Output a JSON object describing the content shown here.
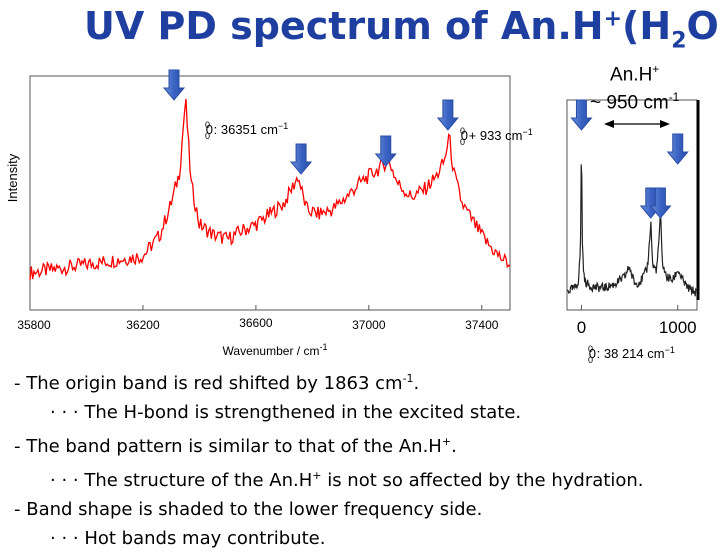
{
  "slide": {
    "title_main": "UV PD spectrum of An.H",
    "title_sup": "+",
    "title_rest": "(H",
    "title_sub": "2",
    "title_end": "O)"
  },
  "chart_data": [
    {
      "type": "line",
      "xlabel": "Wavenumber / cm-1",
      "ylabel": "Intensity",
      "xlim": [
        35800,
        37500
      ],
      "ylim": [
        0,
        1
      ],
      "x_ticks": [
        "35800",
        "36200",
        "36600",
        "37000",
        "37400"
      ],
      "annotations": [
        {
          "text": "0 0 0 : 36351 cm-1",
          "x": 36351
        },
        {
          "text": "0 0 0 + 933 cm-1",
          "x": 37284
        }
      ],
      "arrows_x": [
        36310,
        36760,
        37060,
        37280
      ],
      "series": [
        {
          "color": "#ff0000",
          "x": [
            35800,
            35900,
            36000,
            36100,
            36200,
            36260,
            36300,
            36330,
            36351,
            36370,
            36400,
            36450,
            36500,
            36550,
            36600,
            36650,
            36700,
            36750,
            36760,
            36780,
            36820,
            36870,
            36920,
            36970,
            37000,
            37040,
            37070,
            37100,
            37150,
            37200,
            37240,
            37270,
            37284,
            37300,
            37330,
            37380,
            37420,
            37460,
            37500
          ],
          "y": [
            0.12,
            0.14,
            0.16,
            0.18,
            0.2,
            0.3,
            0.45,
            0.6,
            0.95,
            0.55,
            0.35,
            0.3,
            0.28,
            0.32,
            0.35,
            0.4,
            0.45,
            0.58,
            0.52,
            0.42,
            0.4,
            0.42,
            0.48,
            0.55,
            0.58,
            0.62,
            0.66,
            0.55,
            0.48,
            0.52,
            0.58,
            0.66,
            0.78,
            0.6,
            0.45,
            0.34,
            0.26,
            0.2,
            0.16
          ]
        }
      ]
    },
    {
      "type": "line",
      "title": "An.H+ ~ 950 cm-1",
      "xlim": [
        -150,
        1200
      ],
      "ylim": [
        0,
        1
      ],
      "x_ticks": [
        "0",
        "1000"
      ],
      "caption": "0 0 0 : 38 214 cm-1",
      "arrows_x": [
        0,
        720,
        820,
        1000
      ],
      "series": [
        {
          "color": "#222222",
          "x": [
            -150,
            -60,
            -30,
            -10,
            0,
            10,
            30,
            80,
            150,
            250,
            350,
            450,
            500,
            520,
            560,
            620,
            680,
            700,
            720,
            740,
            780,
            800,
            820,
            840,
            880,
            950,
            1000,
            1050,
            1100,
            1200
          ],
          "y": [
            0.06,
            0.08,
            0.12,
            0.3,
            0.92,
            0.3,
            0.12,
            0.09,
            0.08,
            0.08,
            0.1,
            0.14,
            0.2,
            0.15,
            0.1,
            0.12,
            0.18,
            0.28,
            0.45,
            0.2,
            0.18,
            0.3,
            0.5,
            0.22,
            0.14,
            0.12,
            0.18,
            0.12,
            0.08,
            0.05
          ]
        }
      ]
    }
  ],
  "inset": {
    "title_line1": "An.H+",
    "title_line2": "~ 950 cm-1"
  },
  "bullets": [
    {
      "text": "- The origin band is red shifted by 1863 cm-1."
    },
    {
      "text": "· · · The H-bond is strengthened in the excited state."
    },
    {
      "text": "- The band pattern is similar to that of the An.H+."
    },
    {
      "text": "· · ·  The structure of the An.H+ is not so affected by the hydration."
    },
    {
      "text": "- Band shape is shaded to the lower frequency side."
    },
    {
      "text": "· · · Hot bands may contribute."
    }
  ]
}
